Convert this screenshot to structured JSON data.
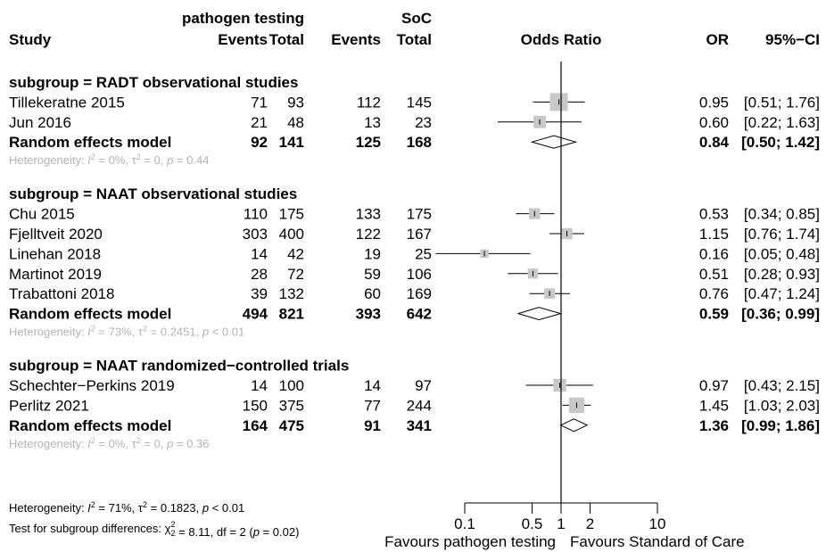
{
  "header": {
    "group1": "pathogen testing",
    "group2": "SoC",
    "study": "Study",
    "events1": "Events",
    "total1": "Total",
    "events2": "Events",
    "total2": "Total",
    "odds_ratio": "Odds Ratio",
    "or": "OR",
    "ci": "95%−CI"
  },
  "colors": {
    "text": "#000000",
    "summary": "#b4b4b4",
    "box": "#c8c8c8"
  },
  "chart_data": {
    "type": "forest",
    "x_scale": "log",
    "xlim": [
      0.05,
      10
    ],
    "reference_line": 1,
    "axis_ticks": [
      0.1,
      0.5,
      1,
      2,
      10
    ],
    "axis_tick_labels": [
      "0.1",
      "0.5",
      "1",
      "2",
      "10"
    ],
    "favours_left": "Favours pathogen testing",
    "favours_right": "Favours Standard of Care",
    "subgroups": [
      {
        "label": "subgroup = RADT observational studies",
        "studies": [
          {
            "name": "Tillekeratne 2015",
            "e1": "71",
            "t1": "93",
            "e2": "112",
            "t2": "145",
            "or_text": "0.95",
            "ci_text": "[0.51; 1.76]",
            "or": 0.95,
            "lo": 0.51,
            "hi": 1.76,
            "weight": 1.0
          },
          {
            "name": "Jun 2016",
            "e1": "21",
            "t1": "48",
            "e2": "13",
            "t2": "23",
            "or_text": "0.60",
            "ci_text": "[0.22; 1.63]",
            "or": 0.6,
            "lo": 0.22,
            "hi": 1.63,
            "weight": 0.55
          }
        ],
        "model": {
          "name": "Random effects model",
          "e1": "92",
          "t1": "141",
          "e2": "125",
          "t2": "168",
          "or_text": "0.84",
          "ci_text": "[0.50; 1.42]",
          "or": 0.84,
          "lo": 0.5,
          "hi": 1.42
        },
        "heterogeneity": "Heterogeneity: I² = 0%, τ² = 0, p = 0.44"
      },
      {
        "label": "subgroup = NAAT observational studies",
        "studies": [
          {
            "name": "Chu 2015",
            "e1": "110",
            "t1": "175",
            "e2": "133",
            "t2": "175",
            "or_text": "0.53",
            "ci_text": "[0.34; 0.85]",
            "or": 0.53,
            "lo": 0.34,
            "hi": 0.85,
            "weight": 0.45
          },
          {
            "name": "Fjelltveit 2020",
            "e1": "303",
            "t1": "400",
            "e2": "122",
            "t2": "167",
            "or_text": "1.15",
            "ci_text": "[0.76; 1.74]",
            "or": 1.15,
            "lo": 0.76,
            "hi": 1.74,
            "weight": 0.45
          },
          {
            "name": "Linehan 2018",
            "e1": "14",
            "t1": "42",
            "e2": "19",
            "t2": "25",
            "or_text": "0.16",
            "ci_text": "[0.05; 0.48]",
            "or": 0.16,
            "lo": 0.05,
            "hi": 0.48,
            "weight": 0.25
          },
          {
            "name": "Martinot 2019",
            "e1": "28",
            "t1": "72",
            "e2": "59",
            "t2": "106",
            "or_text": "0.51",
            "ci_text": "[0.28; 0.93]",
            "or": 0.51,
            "lo": 0.28,
            "hi": 0.93,
            "weight": 0.38
          },
          {
            "name": "Trabattoni 2018",
            "e1": "39",
            "t1": "132",
            "e2": "60",
            "t2": "169",
            "or_text": "0.76",
            "ci_text": "[0.47; 1.24]",
            "or": 0.76,
            "lo": 0.47,
            "hi": 1.24,
            "weight": 0.42
          }
        ],
        "model": {
          "name": "Random effects model",
          "e1": "494",
          "t1": "821",
          "e2": "393",
          "t2": "642",
          "or_text": "0.59",
          "ci_text": "[0.36; 0.99]",
          "or": 0.59,
          "lo": 0.36,
          "hi": 0.99
        },
        "heterogeneity": "Heterogeneity: I² = 73%, τ² = 0.2451, p < 0.01"
      },
      {
        "label": "subgroup = NAAT randomized−controlled trials",
        "studies": [
          {
            "name": "Schechter−Perkins 2019",
            "e1": "14",
            "t1": "100",
            "e2": "14",
            "t2": "97",
            "or_text": "0.97",
            "ci_text": "[0.43; 2.15]",
            "or": 0.97,
            "lo": 0.43,
            "hi": 2.15,
            "weight": 0.6
          },
          {
            "name": "Perlitz 2021",
            "e1": "150",
            "t1": "375",
            "e2": "77",
            "t2": "244",
            "or_text": "1.45",
            "ci_text": "[1.03; 2.03]",
            "or": 1.45,
            "lo": 1.03,
            "hi": 2.03,
            "weight": 0.8
          }
        ],
        "model": {
          "name": "Random effects model",
          "e1": "164",
          "t1": "475",
          "e2": "91",
          "t2": "341",
          "or_text": "1.36",
          "ci_text": "[0.99; 1.86]",
          "or": 1.36,
          "lo": 0.99,
          "hi": 1.86
        },
        "heterogeneity": "Heterogeneity: I² = 0%, τ² = 0, p = 0.36"
      }
    ],
    "overall_heterogeneity": "Heterogeneity: I² = 71%, τ² = 0.1823, p < 0.01",
    "subgroup_test": "Test for subgroup differences: χ²₂ = 8.11, df = 2 (p = 0.02)"
  }
}
